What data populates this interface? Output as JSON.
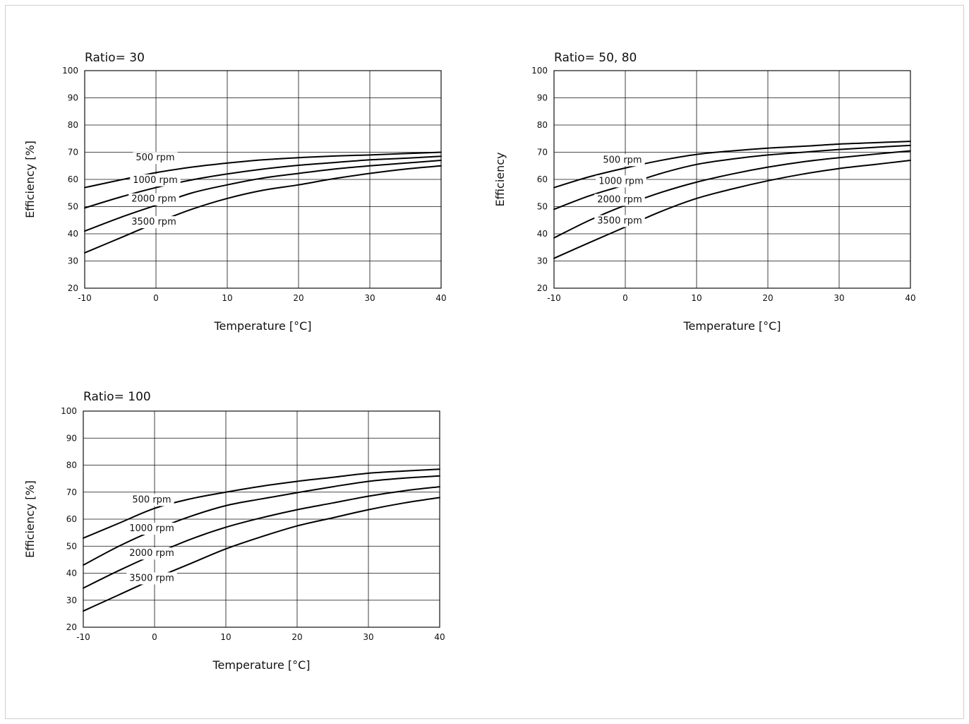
{
  "chart_data": [
    {
      "type": "line",
      "title": "Ratio= 30",
      "xlabel": "Temperature [°C]",
      "ylabel": "Efficiency [%]",
      "xlim": [
        -10,
        40
      ],
      "ylim": [
        20,
        100
      ],
      "x_ticks": [
        -10,
        0,
        10,
        20,
        30,
        40
      ],
      "y_ticks": [
        100,
        90,
        80,
        70,
        60,
        50,
        40,
        30,
        20
      ],
      "x_tick_labels": [
        "-10",
        "0",
        "10",
        "20",
        "30",
        "40"
      ],
      "y_tick_labels": [
        "100",
        "90",
        "80",
        "70",
        "60",
        "50",
        "40",
        "30",
        "20"
      ],
      "grid": true,
      "series": [
        {
          "name": "500 rpm",
          "x": [
            -10,
            -5,
            0,
            5,
            10,
            15,
            20,
            25,
            30,
            35,
            40
          ],
          "y": [
            57,
            59.8,
            62.5,
            64.5,
            66,
            67.2,
            68,
            68.6,
            69,
            69.5,
            70
          ]
        },
        {
          "name": "1000 rpm",
          "x": [
            -10,
            -5,
            0,
            5,
            10,
            15,
            20,
            25,
            30,
            35,
            40
          ],
          "y": [
            49.5,
            53.5,
            57,
            59.8,
            62,
            63.8,
            65.2,
            66.2,
            67.2,
            67.8,
            68.5
          ]
        },
        {
          "name": "2000 rpm",
          "x": [
            -10,
            -5,
            0,
            5,
            10,
            15,
            20,
            25,
            30,
            35,
            40
          ],
          "y": [
            41,
            46,
            50.5,
            55,
            58,
            60.5,
            62.2,
            63.8,
            65,
            66,
            67
          ]
        },
        {
          "name": "3500 rpm",
          "x": [
            -10,
            -5,
            0,
            5,
            10,
            15,
            20,
            25,
            30,
            35,
            40
          ],
          "y": [
            33,
            38.5,
            44,
            49,
            53,
            56,
            58,
            60.3,
            62.2,
            63.8,
            65
          ]
        }
      ]
    },
    {
      "type": "line",
      "title": "Ratio= 50, 80",
      "xlabel": "Temperature [°C]",
      "ylabel": "Efficiency",
      "xlim": [
        -10,
        40
      ],
      "ylim": [
        20,
        100
      ],
      "x_ticks": [
        -10,
        0,
        10,
        20,
        30,
        40
      ],
      "y_ticks": [
        100,
        90,
        80,
        70,
        60,
        50,
        40,
        30,
        20
      ],
      "x_tick_labels": [
        "-10",
        "0",
        "10",
        "20",
        "30",
        "40"
      ],
      "y_tick_labels": [
        "100",
        "90",
        "80",
        "70",
        "60",
        "50",
        "40",
        "30",
        "20"
      ],
      "grid": true,
      "series": [
        {
          "name": "500 rpm",
          "x": [
            -10,
            -5,
            0,
            5,
            10,
            15,
            20,
            25,
            30,
            35,
            40
          ],
          "y": [
            57,
            61,
            64.2,
            67,
            69.2,
            70.5,
            71.5,
            72.2,
            73,
            73.5,
            74
          ]
        },
        {
          "name": "1000 rpm",
          "x": [
            -10,
            -5,
            0,
            5,
            10,
            15,
            20,
            25,
            30,
            35,
            40
          ],
          "y": [
            49,
            54,
            58,
            62.2,
            65.5,
            67.5,
            69,
            70,
            71,
            71.8,
            72.5
          ]
        },
        {
          "name": "2000 rpm",
          "x": [
            -10,
            -5,
            0,
            5,
            10,
            15,
            20,
            25,
            30,
            35,
            40
          ],
          "y": [
            38.5,
            45,
            50.5,
            55.2,
            59,
            62,
            64.5,
            66.5,
            68,
            69.3,
            70.5
          ]
        },
        {
          "name": "3500 rpm",
          "x": [
            -10,
            -5,
            0,
            5,
            10,
            15,
            20,
            25,
            30,
            35,
            40
          ],
          "y": [
            31,
            36.8,
            42.5,
            48.2,
            53,
            56.5,
            59.5,
            62,
            64,
            65.5,
            67
          ]
        }
      ]
    },
    {
      "type": "line",
      "title": "Ratio= 100",
      "xlabel": "Temperature [°C]",
      "ylabel": "Efficiency [%]",
      "xlim": [
        -10,
        40
      ],
      "ylim": [
        20,
        100
      ],
      "x_ticks": [
        -10,
        0,
        10,
        20,
        30,
        40
      ],
      "y_ticks": [
        100,
        90,
        80,
        70,
        60,
        50,
        40,
        30,
        20
      ],
      "x_tick_labels": [
        "-10",
        "0",
        "10",
        "20",
        "30",
        "40"
      ],
      "y_tick_labels": [
        "100",
        "90",
        "80",
        "70",
        "60",
        "50",
        "40",
        "30",
        "20"
      ],
      "grid": true,
      "series": [
        {
          "name": "500 rpm",
          "x": [
            -10,
            -5,
            0,
            5,
            10,
            15,
            20,
            25,
            30,
            35,
            40
          ],
          "y": [
            53,
            58.5,
            64,
            67.5,
            70,
            72.2,
            74,
            75.5,
            77,
            77.8,
            78.5
          ]
        },
        {
          "name": "1000 rpm",
          "x": [
            -10,
            -5,
            0,
            5,
            10,
            15,
            20,
            25,
            30,
            35,
            40
          ],
          "y": [
            43,
            50,
            56,
            61,
            65,
            67.5,
            69.8,
            72,
            74,
            75.2,
            76
          ]
        },
        {
          "name": "2000 rpm",
          "x": [
            -10,
            -5,
            0,
            5,
            10,
            15,
            20,
            25,
            30,
            35,
            40
          ],
          "y": [
            34.5,
            41,
            47,
            52.5,
            57,
            60.5,
            63.5,
            66,
            68.5,
            70.5,
            72
          ]
        },
        {
          "name": "3500 rpm",
          "x": [
            -10,
            -5,
            0,
            5,
            10,
            15,
            20,
            25,
            30,
            35,
            40
          ],
          "y": [
            26,
            32,
            38,
            43.5,
            49,
            53.5,
            57.5,
            60.5,
            63.5,
            66,
            68
          ]
        }
      ]
    }
  ]
}
